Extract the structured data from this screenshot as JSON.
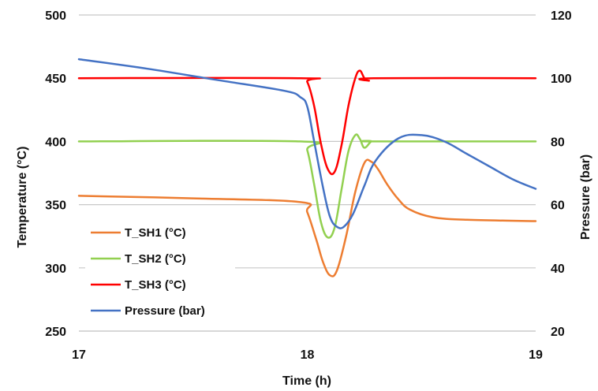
{
  "chart_data": {
    "type": "line",
    "xlabel": "Time (h)",
    "ylabel": "Temperature (°C)",
    "y2label": "Pressure (bar)",
    "xlim": [
      17,
      19
    ],
    "ylim": [
      250,
      500
    ],
    "y2lim": [
      20,
      120
    ],
    "x_ticks": [
      "17",
      "18",
      "19"
    ],
    "y_ticks": [
      "250",
      "300",
      "350",
      "400",
      "450",
      "500"
    ],
    "y2_ticks": [
      "20",
      "40",
      "60",
      "80",
      "100",
      "120"
    ],
    "grid": "horizontal",
    "legend_position": "bottom-left",
    "series": [
      {
        "name": "T_SH1 (°C)",
        "color": "#ED7D31",
        "axis": "left",
        "x": [
          17,
          17.5,
          17.97,
          18.0,
          18.04,
          18.07,
          18.1,
          18.13,
          18.17,
          18.21,
          18.25,
          18.28,
          18.31,
          18.35,
          18.4,
          18.45,
          18.55,
          18.7,
          19
        ],
        "y": [
          357,
          355,
          352,
          344,
          322,
          304,
          294,
          298,
          325,
          360,
          383,
          384,
          378,
          366,
          354,
          346,
          340,
          338,
          337
        ]
      },
      {
        "name": "T_SH2 (°C)",
        "color": "#92D050",
        "axis": "left",
        "x": [
          17,
          17.97,
          18.0,
          18.03,
          18.06,
          18.09,
          18.12,
          18.15,
          18.18,
          18.21,
          18.23,
          18.25,
          18.28,
          18.3,
          19
        ],
        "y": [
          400,
          400,
          393,
          366,
          336,
          324,
          332,
          362,
          392,
          405,
          402,
          395,
          400,
          400,
          400
        ]
      },
      {
        "name": "T_SH3 (°C)",
        "color": "#FF0000",
        "axis": "left",
        "x": [
          17,
          17.97,
          18.0,
          18.03,
          18.06,
          18.09,
          18.12,
          18.15,
          18.18,
          18.21,
          18.23,
          18.25,
          18.27,
          18.29,
          19
        ],
        "y": [
          450,
          450,
          447,
          428,
          398,
          378,
          376,
          397,
          428,
          450,
          456,
          450,
          448,
          450,
          450
        ]
      },
      {
        "name": "Pressure (bar)",
        "color": "#4472C4",
        "axis": "right",
        "x": [
          17,
          17.3,
          17.6,
          17.9,
          17.97,
          18.0,
          18.03,
          18.07,
          18.1,
          18.13,
          18.16,
          18.2,
          18.25,
          18.3,
          18.4,
          18.5,
          18.6,
          18.7,
          18.8,
          18.9,
          19
        ],
        "y": [
          106,
          103,
          99.5,
          96,
          94,
          91,
          80,
          65,
          56,
          53,
          53,
          57,
          66,
          74,
          81,
          82,
          80,
          76,
          72,
          68,
          65
        ]
      }
    ]
  }
}
